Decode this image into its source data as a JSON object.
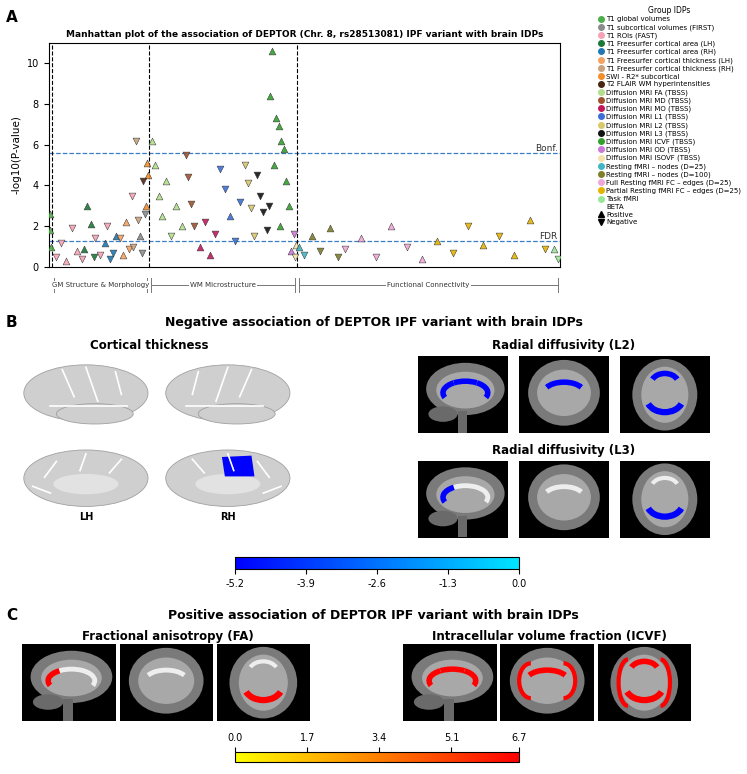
{
  "chart_data": {
    "type": "scatter",
    "title": "Manhattan plot of the association of DEPTOR (Chr. 8, rs28513081) IPF variant with brain IDPs",
    "y_label": "-log10(P-value)",
    "xlim": [
      0,
      100
    ],
    "ylim": [
      0,
      11
    ],
    "yticks": [
      0,
      2,
      4,
      6,
      8,
      10
    ],
    "tick_labels": "y",
    "grid": false,
    "legend": "upper right",
    "marker": "circle",
    "legend_title": "Group IDPs",
    "beta_title": "BETA",
    "beta_legend": [
      {
        "name": "Positive",
        "marker": "triangle_up"
      },
      {
        "name": "Negative",
        "marker": "triangle_down"
      }
    ],
    "thresholds": [
      {
        "value": 5.6,
        "label": "Bonf."
      },
      {
        "value": 1.3,
        "label": "FDR"
      }
    ],
    "dividers": [
      0.6,
      19.6,
      48.5
    ],
    "sections": [
      {
        "label": "GM Structure & Morphology",
        "range": [
          0.6,
          19.6
        ]
      },
      {
        "label": "WM Microstructure",
        "range": [
          19.6,
          48.5
        ]
      },
      {
        "label": "Functional Connectivity",
        "range": [
          48.5,
          100
        ]
      }
    ],
    "series": [
      {
        "name": "T1 global volumes",
        "color": "#4daf4a",
        "x": [
          0.2,
          0.3,
          0.5
        ],
        "values": [
          2.6,
          1.8,
          1.0
        ],
        "beta": [
          "Positive",
          "Positive",
          "Positive"
        ]
      },
      {
        "name": "T1 subcortical volumes (FIRST)",
        "color": "#8c8c8c",
        "x": [
          17.8,
          18.3,
          18.8
        ],
        "values": [
          1.5,
          0.7,
          2.6
        ],
        "beta": [
          "Positive",
          "Negative",
          "Negative"
        ]
      },
      {
        "name": "T1 ROIs (FAST)",
        "color": "#f4a3b5",
        "x": [
          1.5,
          2.5,
          3.5,
          4.5,
          5.5,
          6.5,
          9.0,
          10.0,
          11.5,
          16.3
        ],
        "values": [
          0.5,
          1.2,
          0.3,
          1.9,
          0.8,
          0.4,
          1.4,
          0.6,
          2.0,
          3.5
        ],
        "beta": [
          "Negative",
          "Negative",
          "Positive",
          "Negative",
          "Positive",
          "Negative",
          "Negative",
          "Negative",
          "Negative",
          "Negative"
        ]
      },
      {
        "name": "T1 Freesurfer cortical area (LH)",
        "color": "#1b7837",
        "x": [
          7.0,
          7.5,
          8.2,
          8.8
        ],
        "values": [
          0.9,
          3.0,
          2.1,
          0.5
        ],
        "beta": [
          "Positive",
          "Positive",
          "Positive",
          "Negative"
        ]
      },
      {
        "name": "T1 Freesurfer cortical area (RH)",
        "color": "#1f78b4",
        "x": [
          11.0,
          12.0,
          12.5,
          13.2
        ],
        "values": [
          1.2,
          0.4,
          0.7,
          1.5
        ],
        "beta": [
          "Positive",
          "Negative",
          "Negative",
          "Positive"
        ]
      },
      {
        "name": "T1 Freesurfer cortical thickness (LH)",
        "color": "#f4a261",
        "x": [
          14.0,
          14.6,
          15.2,
          15.8
        ],
        "values": [
          1.4,
          0.6,
          2.2,
          0.9
        ],
        "beta": [
          "Negative",
          "Positive",
          "Positive",
          "Negative"
        ]
      },
      {
        "name": "T1 Freesurfer cortical thickness (RH)",
        "color": "#c9a27e",
        "x": [
          16.6,
          17.0,
          17.4
        ],
        "values": [
          1.0,
          6.2,
          2.3
        ],
        "beta": [
          "Negative",
          "Negative",
          "Negative"
        ]
      },
      {
        "name": "SWI - R2* subcortical",
        "color": "#f28e2b",
        "x": [
          19.0,
          19.2,
          19.4
        ],
        "values": [
          3.0,
          5.1,
          4.5
        ],
        "beta": [
          "Positive",
          "Positive",
          "Positive"
        ]
      },
      {
        "name": "T2 FLAIR WM hyperintensities",
        "color": "#4a2511",
        "x": [
          18.5
        ],
        "values": [
          4.2
        ],
        "beta": [
          "Negative"
        ]
      },
      {
        "name": "Diffusion MRI FA (TBSS)",
        "color": "#b2df8a",
        "x": [
          20.3,
          20.8,
          21.5,
          22.2,
          23.0,
          24.0,
          25.0,
          26.0
        ],
        "values": [
          6.2,
          5.0,
          3.5,
          2.5,
          4.2,
          1.5,
          3.0,
          2.0
        ],
        "beta": [
          "Positive",
          "Positive",
          "Positive",
          "Positive",
          "Positive",
          "Negative",
          "Positive",
          "Positive"
        ]
      },
      {
        "name": "Diffusion MRI MD (TBSS)",
        "color": "#a0522d",
        "x": [
          26.8,
          27.3,
          27.8,
          28.4
        ],
        "values": [
          5.5,
          4.4,
          3.1,
          2.0
        ],
        "beta": [
          "Negative",
          "Negative",
          "Negative",
          "Negative"
        ]
      },
      {
        "name": "Diffusion MRI MO (TBSS)",
        "color": "#c2185b",
        "x": [
          29.5,
          30.5,
          31.5,
          32.5
        ],
        "values": [
          1.0,
          2.2,
          0.6,
          1.6
        ],
        "beta": [
          "Positive",
          "Negative",
          "Positive",
          "Negative"
        ]
      },
      {
        "name": "Diffusion MRI L1 (TBSS)",
        "color": "#3b6fd8",
        "x": [
          33.5,
          34.5,
          35.5,
          36.5,
          37.5
        ],
        "values": [
          4.8,
          3.8,
          2.5,
          1.3,
          3.2
        ],
        "beta": [
          "Negative",
          "Negative",
          "Positive",
          "Negative",
          "Negative"
        ]
      },
      {
        "name": "Diffusion MRI L2 (TBSS)",
        "color": "#d9c96b",
        "x": [
          38.3,
          38.9,
          39.5,
          40.1
        ],
        "values": [
          5.0,
          4.1,
          2.9,
          1.5
        ],
        "beta": [
          "Negative",
          "Negative",
          "Negative",
          "Negative"
        ]
      },
      {
        "name": "Diffusion MRI L3 (TBSS)",
        "color": "#111111",
        "x": [
          40.8,
          41.4,
          42.0,
          42.6,
          43.0
        ],
        "values": [
          4.5,
          3.5,
          2.7,
          1.8,
          3.0
        ],
        "beta": [
          "Negative",
          "Negative",
          "Negative",
          "Negative",
          "Negative"
        ]
      },
      {
        "name": "Diffusion MRI ICVF (TBSS)",
        "color": "#33a02c",
        "x": [
          43.3,
          43.7,
          44.0,
          44.5,
          45.0,
          45.2,
          45.5,
          46.0,
          46.5,
          47.0
        ],
        "values": [
          8.4,
          10.6,
          5.0,
          7.3,
          6.9,
          2.0,
          6.2,
          5.8,
          4.2,
          3.0
        ],
        "beta": [
          "Positive",
          "Positive",
          "Positive",
          "Positive",
          "Positive",
          "Positive",
          "Positive",
          "Positive",
          "Positive",
          "Positive"
        ]
      },
      {
        "name": "Diffusion MRI OD (TBSS)",
        "color": "#cc79d8",
        "x": [
          47.4,
          47.9
        ],
        "values": [
          0.8,
          1.6
        ],
        "beta": [
          "Positive",
          "Negative"
        ]
      },
      {
        "name": "Diffusion MRI ISOVF (TBSS)",
        "color": "#f3e2a9",
        "x": [
          48.1,
          48.3
        ],
        "values": [
          0.5,
          1.1
        ],
        "beta": [
          "Negative",
          "Positive"
        ]
      },
      {
        "name": "Resting fMRI – nodes (D=25)",
        "color": "#41b6c4",
        "x": [
          49.0,
          50.0
        ],
        "values": [
          1.0,
          0.6
        ],
        "beta": [
          "Positive",
          "Negative"
        ]
      },
      {
        "name": "Resting fMRI – nodes (D=100)",
        "color": "#7f7f2a",
        "x": [
          51.5,
          53.0,
          55.0,
          56.5
        ],
        "values": [
          1.5,
          0.8,
          1.9,
          0.5
        ],
        "beta": [
          "Positive",
          "Negative",
          "Positive",
          "Negative"
        ]
      },
      {
        "name": "Full Resting fMRI FC – edges (D=25)",
        "color": "#f1a6d8",
        "x": [
          58,
          61,
          64,
          67,
          70,
          73
        ],
        "values": [
          0.9,
          1.4,
          0.5,
          2.0,
          1.0,
          0.4
        ],
        "beta": [
          "Negative",
          "Positive",
          "Negative",
          "Positive",
          "Negative",
          "Positive"
        ]
      },
      {
        "name": "Partial Resting fMRI FC – edges (D=25)",
        "color": "#e6b400",
        "x": [
          76,
          79,
          82,
          85,
          88,
          91,
          94,
          97
        ],
        "values": [
          1.3,
          0.7,
          2.0,
          1.1,
          1.5,
          0.6,
          2.3,
          0.9
        ],
        "beta": [
          "Positive",
          "Negative",
          "Negative",
          "Positive",
          "Negative",
          "Positive",
          "Positive",
          "Negative"
        ]
      },
      {
        "name": "Task fMRI",
        "color": "#98e698",
        "x": [
          98.8,
          99.5
        ],
        "values": [
          0.9,
          0.4
        ],
        "beta": [
          "Positive",
          "Negative"
        ]
      }
    ]
  },
  "panel_labels": [
    "A",
    "B",
    "C"
  ],
  "brain_panels": [
    {
      "title": "Negative association of DEPTOR IPF variant with brain IDPs",
      "maps": [
        {
          "label": "Cortical thickness",
          "type": "surface",
          "hemispheres": [
            "LH",
            "RH"
          ]
        },
        {
          "label": "Radial diffusivity (L2)",
          "type": "slices"
        },
        {
          "label": "Radial diffusivity (L3)",
          "type": "slices"
        }
      ],
      "colorbar": {
        "range": [
          -5.2,
          0.0
        ],
        "ticks": [
          -5.2,
          -3.9,
          -2.6,
          -1.3,
          0.0
        ],
        "colors": [
          "#0000ff",
          "#00e5ff"
        ]
      }
    },
    {
      "title": "Positive association of DEPTOR IPF variant with brain IDPs",
      "maps": [
        {
          "label": "Fractional anisotropy (FA)",
          "type": "slices"
        },
        {
          "label": "Intracellular volume fraction (ICVF)",
          "type": "slices"
        }
      ],
      "colorbar": {
        "range": [
          0.0,
          6.7
        ],
        "ticks": [
          0.0,
          1.7,
          3.4,
          5.1,
          6.7
        ],
        "colors": [
          "#ffff00",
          "#ff0000"
        ]
      }
    }
  ]
}
